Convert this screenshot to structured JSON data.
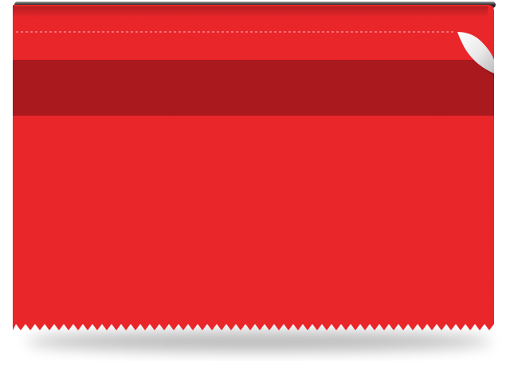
{
  "colors": {
    "ribbon": "#ee2a2e",
    "ribbon_light": "#f23a3d",
    "band": "#a9191d",
    "stitch": "#f7b7b8",
    "rod_dark": "#2a2a2a",
    "rod_light": "#9a9a9a",
    "curl": "#f4f4f4",
    "shadow": "#000000"
  }
}
